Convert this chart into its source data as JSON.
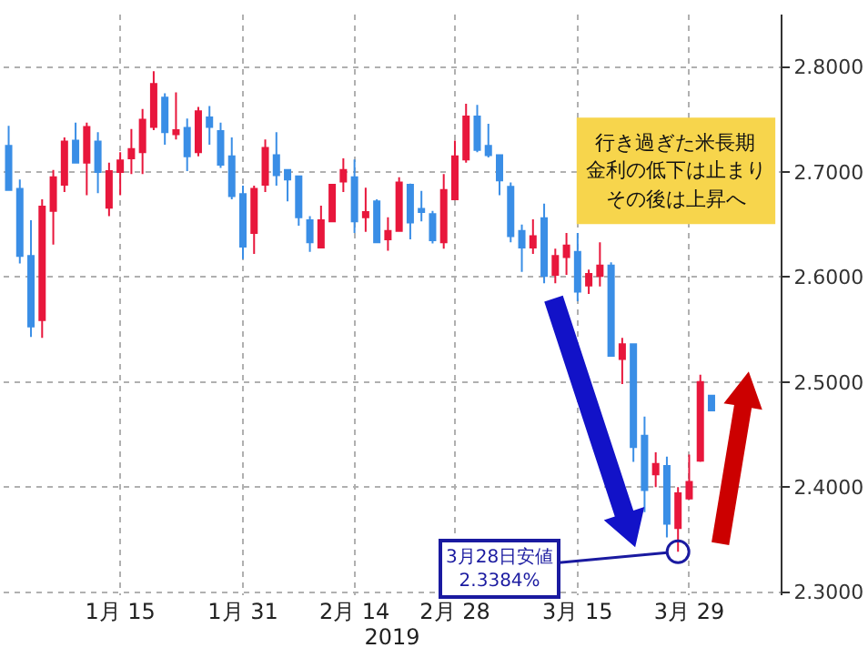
{
  "chart_data": {
    "type": "candlestick",
    "xlabel": "2019",
    "categories": [
      null,
      null,
      null,
      null,
      null,
      null,
      null,
      null,
      null,
      null,
      "1月 15",
      null,
      null,
      null,
      null,
      null,
      null,
      null,
      null,
      null,
      null,
      "1月 31",
      null,
      null,
      null,
      null,
      null,
      null,
      null,
      null,
      null,
      "2月 14",
      null,
      null,
      null,
      null,
      null,
      null,
      null,
      null,
      "2月 28",
      null,
      null,
      null,
      null,
      null,
      null,
      null,
      null,
      null,
      null,
      "3月 15",
      null,
      null,
      null,
      null,
      null,
      null,
      null,
      null,
      null,
      "3月 29",
      null,
      null
    ],
    "ohlc": [
      [
        2.725,
        2.744,
        2.683,
        2.683
      ],
      [
        2.684,
        2.693,
        2.613,
        2.62
      ],
      [
        2.62,
        2.654,
        2.543,
        2.553
      ],
      [
        2.559,
        2.674,
        2.542,
        2.667
      ],
      [
        2.663,
        2.702,
        2.631,
        2.695
      ],
      [
        2.688,
        2.733,
        2.681,
        2.729
      ],
      [
        2.73,
        2.747,
        2.709,
        2.709
      ],
      [
        2.709,
        2.747,
        2.678,
        2.743
      ],
      [
        2.729,
        2.738,
        2.68,
        2.7
      ],
      [
        2.666,
        2.709,
        2.658,
        2.701
      ],
      [
        2.7,
        2.719,
        2.678,
        2.711
      ],
      [
        2.713,
        2.741,
        2.698,
        2.722
      ],
      [
        2.719,
        2.76,
        2.698,
        2.75
      ],
      [
        2.743,
        2.796,
        2.74,
        2.784
      ],
      [
        2.771,
        2.775,
        2.726,
        2.738
      ],
      [
        2.736,
        2.776,
        2.731,
        2.74
      ],
      [
        2.742,
        2.751,
        2.701,
        2.715
      ],
      [
        2.719,
        2.762,
        2.715,
        2.758
      ],
      [
        2.752,
        2.763,
        2.726,
        2.743
      ],
      [
        2.739,
        2.747,
        2.704,
        2.707
      ],
      [
        2.715,
        2.733,
        2.674,
        2.677
      ],
      [
        2.679,
        2.687,
        2.617,
        2.629
      ],
      [
        2.642,
        2.687,
        2.622,
        2.684
      ],
      [
        2.688,
        2.731,
        2.681,
        2.723
      ],
      [
        2.716,
        2.738,
        2.687,
        2.697
      ],
      [
        2.702,
        2.702,
        2.672,
        2.693
      ],
      [
        2.696,
        2.696,
        2.649,
        2.657
      ],
      [
        2.654,
        2.658,
        2.624,
        2.633
      ],
      [
        2.628,
        2.668,
        2.628,
        2.654
      ],
      [
        2.653,
        2.688,
        2.653,
        2.688
      ],
      [
        2.691,
        2.713,
        2.681,
        2.702
      ],
      [
        2.695,
        2.712,
        2.642,
        2.653
      ],
      [
        2.657,
        2.685,
        2.643,
        2.662
      ],
      [
        2.672,
        2.674,
        2.633,
        2.633
      ],
      [
        2.636,
        2.657,
        2.625,
        2.644
      ],
      [
        2.644,
        2.695,
        2.643,
        2.69
      ],
      [
        2.688,
        2.689,
        2.636,
        2.652
      ],
      [
        2.665,
        2.682,
        2.653,
        2.662
      ],
      [
        2.66,
        2.663,
        2.632,
        2.635
      ],
      [
        2.633,
        2.698,
        2.627,
        2.683
      ],
      [
        2.674,
        2.73,
        2.674,
        2.715
      ],
      [
        2.712,
        2.765,
        2.709,
        2.753
      ],
      [
        2.753,
        2.764,
        2.719,
        2.721
      ],
      [
        2.725,
        2.746,
        2.714,
        2.716
      ],
      [
        2.716,
        2.716,
        2.678,
        2.692
      ],
      [
        2.686,
        2.69,
        2.633,
        2.639
      ],
      [
        2.644,
        2.65,
        2.605,
        2.628
      ],
      [
        2.628,
        2.655,
        2.622,
        2.639
      ],
      [
        2.656,
        2.67,
        2.594,
        2.601
      ],
      [
        2.602,
        2.627,
        2.594,
        2.62
      ],
      [
        2.619,
        2.642,
        2.602,
        2.63
      ],
      [
        2.624,
        2.642,
        2.577,
        2.586
      ],
      [
        2.592,
        2.607,
        2.584,
        2.603
      ],
      [
        2.601,
        2.633,
        2.591,
        2.611
      ],
      [
        2.611,
        2.614,
        2.525,
        2.525
      ],
      [
        2.522,
        2.542,
        2.498,
        2.536
      ],
      [
        2.536,
        2.536,
        2.424,
        2.438
      ],
      [
        2.449,
        2.467,
        2.376,
        2.397
      ],
      [
        2.412,
        2.433,
        2.4,
        2.422
      ],
      [
        2.42,
        2.429,
        2.352,
        2.365
      ],
      [
        2.361,
        2.4,
        2.3384,
        2.394
      ],
      [
        2.389,
        2.431,
        2.388,
        2.405
      ],
      [
        2.425,
        2.507,
        2.424,
        2.5
      ],
      [
        2.487,
        2.487,
        2.473,
        2.473
      ]
    ],
    "colors": [
      "#3a8ee6",
      "#3a8ee6",
      "#3a8ee6",
      "#e8173c",
      "#e8173c",
      "#e8173c",
      "#3a8ee6",
      "#e8173c",
      "#3a8ee6",
      "#e8173c",
      "#e8173c",
      "#e8173c",
      "#e8173c",
      "#e8173c",
      "#3a8ee6",
      "#e8173c",
      "#3a8ee6",
      "#e8173c",
      "#3a8ee6",
      "#3a8ee6",
      "#3a8ee6",
      "#3a8ee6",
      "#e8173c",
      "#e8173c",
      "#3a8ee6",
      "#3a8ee6",
      "#3a8ee6",
      "#3a8ee6",
      "#e8173c",
      "#e8173c",
      "#e8173c",
      "#3a8ee6",
      "#e8173c",
      "#3a8ee6",
      "#e8173c",
      "#e8173c",
      "#3a8ee6",
      "#3a8ee6",
      "#3a8ee6",
      "#e8173c",
      "#e8173c",
      "#e8173c",
      "#3a8ee6",
      "#3a8ee6",
      "#3a8ee6",
      "#3a8ee6",
      "#3a8ee6",
      "#e8173c",
      "#3a8ee6",
      "#e8173c",
      "#e8173c",
      "#3a8ee6",
      "#e8173c",
      "#e8173c",
      "#3a8ee6",
      "#e8173c",
      "#3a8ee6",
      "#3a8ee6",
      "#e8173c",
      "#3a8ee6",
      "#e8173c",
      "#e8173c",
      "#e8173c",
      "#3a8ee6"
    ],
    "ylim": [
      2.297,
      2.85
    ],
    "yticks": [
      {
        "value": 2.3,
        "label": "2.3000"
      },
      {
        "value": 2.4,
        "label": "2.4000"
      },
      {
        "value": 2.5,
        "label": "2.5000"
      },
      {
        "value": 2.6,
        "label": "2.6000"
      },
      {
        "value": 2.7,
        "label": "2.7000"
      },
      {
        "value": 2.8,
        "label": "2.8000"
      }
    ],
    "grid": true,
    "annotations": [
      "行き過ぎた米長期",
      "金利の低下は止まり",
      "その後は上昇へ",
      "3月28日安値\n2.3384%"
    ]
  }
}
